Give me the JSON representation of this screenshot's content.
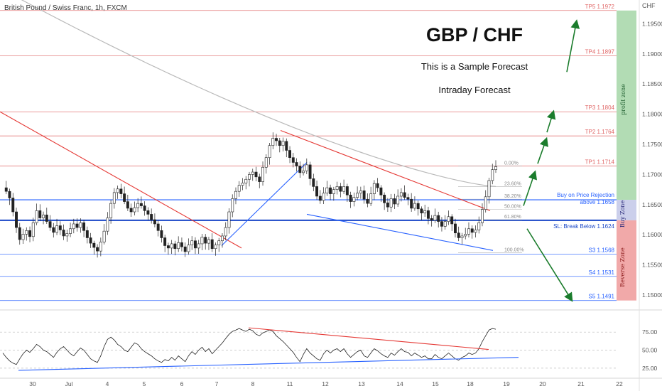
{
  "header": {
    "symbol_title": "British Pound / Swiss Franc, 1h, FXCM"
  },
  "overlay": {
    "title": "GBP / CHF",
    "subtitle": "This is a Sample Forecast",
    "subtitle2": "Intraday Forecast"
  },
  "zones": {
    "profit": "profit zone",
    "buy": "Buy Zone",
    "reverse": "Reverse Zone"
  },
  "levels": [
    {
      "label": "TP5 1.1972",
      "price": 1.1972,
      "color": "#e06666"
    },
    {
      "label": "TP4 1.1897",
      "price": 1.1897,
      "color": "#e06666"
    },
    {
      "label": "TP3 1.1804",
      "price": 1.1804,
      "color": "#e06666"
    },
    {
      "label": "TP2 1.1764",
      "price": 1.1764,
      "color": "#e06666"
    },
    {
      "label": "TP1 1.1714",
      "price": 1.1714,
      "color": "#e06666"
    },
    {
      "label": "Buy on Price Rejection",
      "label2": "above 1.1658",
      "price": 1.1658,
      "color": "#2962ff"
    },
    {
      "label": "SL: Break Below 1.1624",
      "price": 1.1624,
      "color": "#1a47c7"
    },
    {
      "label": "S3 1.1568",
      "price": 1.1568,
      "color": "#2962ff"
    },
    {
      "label": "S4 1.1531",
      "price": 1.1531,
      "color": "#2962ff"
    },
    {
      "label": "S5 1.1491",
      "price": 1.1491,
      "color": "#2962ff"
    }
  ],
  "fib": [
    {
      "label": "0.00%",
      "price": 1.1714
    },
    {
      "label": "23.60%",
      "price": 1.168
    },
    {
      "label": "38.20%",
      "price": 1.1659
    },
    {
      "label": "50.00%",
      "price": 1.1642
    },
    {
      "label": "61.80%",
      "price": 1.1625
    },
    {
      "label": "100.00%",
      "price": 1.157
    }
  ],
  "chart_data": {
    "type": "candlestick",
    "title": "British Pound / Swiss Franc, 1h, FXCM",
    "currency": "CHF",
    "ylim": [
      1.148,
      1.198
    ],
    "y_ticks": [
      "1.19500",
      "1.19000",
      "1.18500",
      "1.18000",
      "1.17500",
      "1.17000",
      "1.16500",
      "1.16000",
      "1.15500",
      "1.15000"
    ],
    "x_ticks": [
      "30",
      "Jul",
      "4",
      "5",
      "6",
      "7",
      "8",
      "11",
      "12",
      "13",
      "14",
      "15",
      "18",
      "19",
      "20",
      "21",
      "22"
    ],
    "price_path": [
      1.1678,
      1.1672,
      1.1661,
      1.1638,
      1.1612,
      1.1592,
      1.1601,
      1.1607,
      1.1597,
      1.162,
      1.164,
      1.1628,
      1.1633,
      1.1622,
      1.1612,
      1.1604,
      1.1615,
      1.1608,
      1.1598,
      1.1602,
      1.161,
      1.1618,
      1.1612,
      1.162,
      1.1607,
      1.1595,
      1.1586,
      1.1579,
      1.1573,
      1.1588,
      1.1606,
      1.1628,
      1.1652,
      1.167,
      1.1676,
      1.1668,
      1.1655,
      1.1644,
      1.1638,
      1.1645,
      1.1652,
      1.1648,
      1.164,
      1.1634,
      1.1625,
      1.1618,
      1.1607,
      1.1595,
      1.1582,
      1.1578,
      1.1585,
      1.1577,
      1.1587,
      1.158,
      1.1572,
      1.1583,
      1.159,
      1.1578,
      1.1585,
      1.1596,
      1.1586,
      1.1592,
      1.1577,
      1.1583,
      1.159,
      1.1598,
      1.1612,
      1.1638,
      1.166,
      1.1672,
      1.1682,
      1.1686,
      1.1692,
      1.17,
      1.1704,
      1.1696,
      1.1688,
      1.1712,
      1.1728,
      1.1748,
      1.176,
      1.1756,
      1.1748,
      1.1755,
      1.174,
      1.1728,
      1.172,
      1.1714,
      1.1703,
      1.1706,
      1.1716,
      1.1693,
      1.168,
      1.1664,
      1.1657,
      1.1669,
      1.1678,
      1.1668,
      1.1675,
      1.168,
      1.1672,
      1.168,
      1.1666,
      1.1655,
      1.1662,
      1.1669,
      1.1673,
      1.1659,
      1.1652,
      1.1668,
      1.1685,
      1.1678,
      1.1666,
      1.1653,
      1.1646,
      1.166,
      1.1651,
      1.1664,
      1.167,
      1.1662,
      1.1659,
      1.1644,
      1.1652,
      1.1643,
      1.1636,
      1.164,
      1.1627,
      1.1624,
      1.1632,
      1.1622,
      1.1614,
      1.1622,
      1.163,
      1.1618,
      1.1603,
      1.1595,
      1.1598,
      1.1601,
      1.161,
      1.1604,
      1.1608,
      1.162,
      1.1642,
      1.1663,
      1.169,
      1.1708,
      1.1713
    ],
    "moving_average": {
      "start": 1.199,
      "end": 1.168,
      "color": "#b9b9b9"
    },
    "trendlines": [
      {
        "name": "descending resistance 1",
        "color": "#e53935"
      },
      {
        "name": "ascending support",
        "color": "#2962ff"
      },
      {
        "name": "descending resistance 2",
        "color": "#e53935"
      },
      {
        "name": "descending support channel",
        "color": "#2962ff"
      }
    ],
    "rsi": {
      "ylim": [
        15,
        90
      ],
      "y_ticks": [
        "75.00",
        "50.00",
        "25.00"
      ],
      "values": [
        46,
        40,
        35,
        32,
        30,
        38,
        45,
        50,
        47,
        52,
        58,
        55,
        50,
        48,
        44,
        40,
        47,
        52,
        55,
        50,
        45,
        42,
        48,
        53,
        50,
        44,
        38,
        35,
        33,
        42,
        55,
        65,
        68,
        64,
        58,
        55,
        50,
        48,
        54,
        60,
        58,
        52,
        48,
        45,
        42,
        38,
        35,
        33,
        37,
        35,
        40,
        36,
        42,
        38,
        34,
        42,
        48,
        44,
        50,
        54,
        48,
        52,
        45,
        50,
        55,
        60,
        66,
        72,
        76,
        78,
        80,
        78,
        76,
        79,
        77,
        72,
        70,
        74,
        76,
        78,
        76,
        70,
        66,
        62,
        57,
        52,
        47,
        40,
        34,
        44,
        52,
        46,
        42,
        38,
        36,
        45,
        50,
        46,
        50,
        52,
        48,
        52,
        45,
        40,
        44,
        48,
        50,
        42,
        40,
        46,
        52,
        49,
        45,
        42,
        40,
        46,
        43,
        48,
        52,
        48,
        47,
        42,
        46,
        43,
        40,
        42,
        38,
        38,
        44,
        40,
        38,
        42,
        46,
        42,
        38,
        36,
        40,
        42,
        46,
        44,
        46,
        52,
        62,
        70,
        78,
        80,
        79
      ]
    }
  }
}
